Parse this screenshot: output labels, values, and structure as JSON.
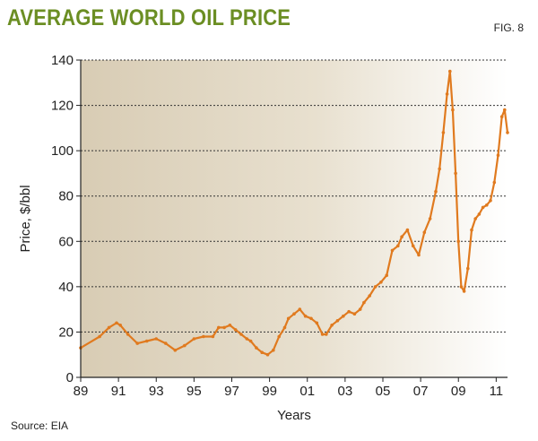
{
  "header": {
    "title": "AVERAGE WORLD OIL PRICE",
    "figure_label": "FIG. 8"
  },
  "footer": {
    "source": "Source: EIA"
  },
  "colors": {
    "title": "#6b8e23",
    "line": "#e07a1f",
    "plot_bg_left": "#d8ccb4",
    "plot_bg_right": "#ffffff",
    "gridline": "#333333"
  },
  "chart_data": {
    "type": "line",
    "title": "AVERAGE WORLD OIL PRICE",
    "xlabel": "Years",
    "ylabel": "Price, $/bbl",
    "xlim": [
      1989,
      2011.6
    ],
    "ylim": [
      0,
      140
    ],
    "x_ticks": [
      1989,
      1991,
      1993,
      1995,
      1997,
      1999,
      2001,
      2003,
      2005,
      2007,
      2009,
      2011
    ],
    "x_tick_labels": [
      "89",
      "91",
      "93",
      "95",
      "97",
      "99",
      "01",
      "03",
      "05",
      "07",
      "09",
      "11"
    ],
    "y_ticks": [
      0,
      20,
      40,
      60,
      80,
      100,
      120,
      140
    ],
    "y_tick_labels": [
      "0",
      "20",
      "40",
      "60",
      "80",
      "100",
      "120",
      "140"
    ],
    "grid": "horizontal dotted",
    "series": [
      {
        "name": "Average world oil price",
        "x": [
          1989.0,
          1990.0,
          1990.5,
          1990.9,
          1991.1,
          1991.5,
          1992.0,
          1992.5,
          1993.0,
          1993.5,
          1994.0,
          1994.5,
          1995.0,
          1995.5,
          1996.0,
          1996.3,
          1996.6,
          1996.9,
          1997.2,
          1997.5,
          1997.8,
          1998.0,
          1998.3,
          1998.6,
          1998.9,
          1999.2,
          1999.5,
          1999.8,
          2000.0,
          2000.3,
          2000.6,
          2000.9,
          2001.2,
          2001.5,
          2001.8,
          2002.0,
          2002.3,
          2002.6,
          2002.9,
          2003.2,
          2003.5,
          2003.8,
          2004.0,
          2004.3,
          2004.6,
          2004.9,
          2005.2,
          2005.5,
          2005.8,
          2006.0,
          2006.3,
          2006.6,
          2006.9,
          2007.2,
          2007.5,
          2007.8,
          2008.0,
          2008.2,
          2008.4,
          2008.55,
          2008.7,
          2008.85,
          2009.0,
          2009.15,
          2009.3,
          2009.5,
          2009.7,
          2009.9,
          2010.1,
          2010.3,
          2010.5,
          2010.7,
          2010.9,
          2011.1,
          2011.3,
          2011.45,
          2011.6
        ],
        "values": [
          13,
          18,
          22,
          24,
          23,
          19,
          15,
          16,
          17,
          15,
          12,
          14,
          17,
          18,
          18,
          22,
          22,
          23,
          21,
          19,
          17,
          16,
          13,
          11,
          10,
          12,
          18,
          22,
          26,
          28,
          30,
          27,
          26,
          24,
          19,
          19,
          23,
          25,
          27,
          29,
          28,
          30,
          33,
          36,
          40,
          42,
          45,
          56,
          58,
          62,
          65,
          58,
          54,
          64,
          70,
          82,
          92,
          108,
          125,
          135,
          118,
          90,
          60,
          40,
          38,
          48,
          65,
          70,
          72,
          75,
          76,
          78,
          86,
          98,
          115,
          118,
          108
        ]
      }
    ]
  }
}
